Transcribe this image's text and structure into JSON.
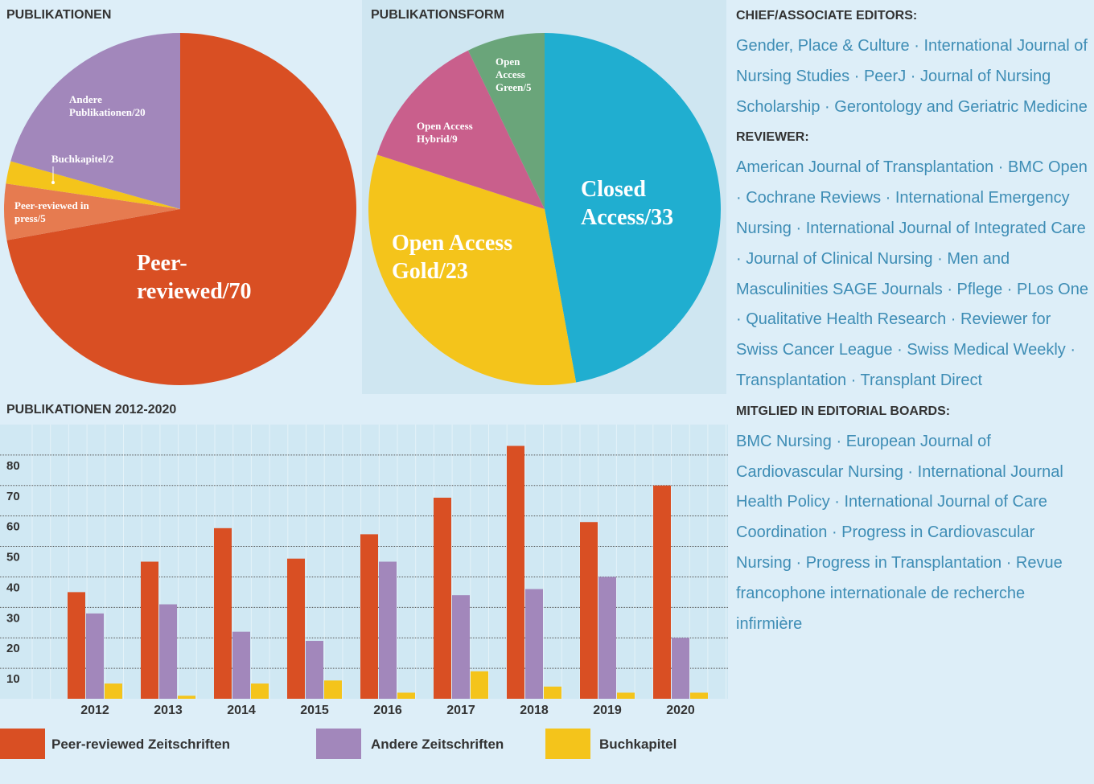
{
  "chart_data": [
    {
      "type": "pie",
      "title": "PUBLIKATIONEN",
      "categories": [
        "Peer-reviewed",
        "Peer-reviewed in press",
        "Buchkapitel",
        "Andere Publikationen"
      ],
      "values": [
        70,
        5,
        2,
        20
      ],
      "value_labels": [
        "Peer-reviewed/70",
        "Peer-reviewed in press/5",
        "Buchkapitel/2",
        "Andere Publikationen/20"
      ],
      "colors": [
        "#d94f23",
        "#e67b50",
        "#f4c41b",
        "#a287bb"
      ]
    },
    {
      "type": "pie",
      "title": "PUBLIKATIONSFORM",
      "categories": [
        "Closed Access",
        "Open Access Gold",
        "Open Access Hybrid",
        "Open Access Green"
      ],
      "values": [
        33,
        23,
        9,
        5
      ],
      "value_labels": [
        "Closed Access/33",
        "Open Access Gold/23",
        "Open Access Hybrid/9",
        "Open Access Green/5"
      ],
      "colors": [
        "#20aed0",
        "#f4c41b",
        "#c95f8c",
        "#6aa57a"
      ]
    },
    {
      "type": "bar",
      "title": "PUBLIKATIONEN 2012-2020",
      "categories": [
        "2012",
        "2013",
        "2014",
        "2015",
        "2016",
        "2017",
        "2018",
        "2019",
        "2020"
      ],
      "series": [
        {
          "name": "Peer-reviewed Zeitschriften",
          "color": "#d94f23",
          "values": [
            35,
            45,
            56,
            46,
            54,
            66,
            83,
            58,
            70
          ]
        },
        {
          "name": "Andere Zeitschriften",
          "color": "#a287bb",
          "values": [
            28,
            31,
            22,
            19,
            45,
            34,
            36,
            40,
            20
          ]
        },
        {
          "name": "Buchkapitel",
          "color": "#f4c41b",
          "values": [
            5,
            1,
            5,
            6,
            2,
            9,
            4,
            2,
            2
          ]
        }
      ],
      "ylim": [
        0,
        90
      ],
      "yticks": [
        10,
        20,
        30,
        40,
        50,
        60,
        70,
        80
      ],
      "grid": true
    }
  ],
  "sidebar": [
    {
      "heading": "CHIEF/ASSOCIATE EDITORS:",
      "text": "Gender, Place & Culture · International Journal of Nursing Studies · PeerJ · Journal of Nursing Scholarship · Gerontology and Geriatric Medicine"
    },
    {
      "heading": "REVIEWER:",
      "text": "American Journal of Transplantation · BMC Open · Cochrane Reviews · International Emergency Nursing · International Journal of Integrated Care · Journal of Clinical Nursing · Men and Masculinities SAGE Journals · Pflege · PLos One · Qualitative Health Research · Reviewer for Swiss Cancer League · Swiss Medical Weekly · Transplantation · Transplant Direct"
    },
    {
      "heading": "MITGLIED IN EDITORIAL BOARDS:",
      "text": "BMC Nursing · European Journal of Cardiovascular Nursing · International Journal Health Policy · International Journal of Care Coordination · Progress in Cardiovascular Nursing · Progress in Transplantation · Revue francophone internationale de recherche infirmière"
    }
  ]
}
